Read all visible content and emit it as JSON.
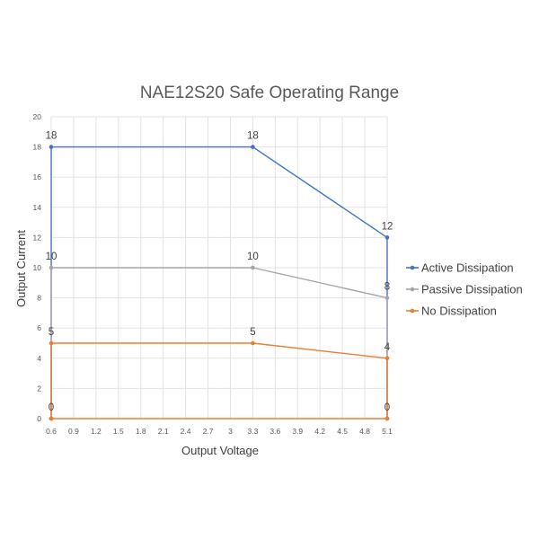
{
  "chart_data": {
    "type": "line",
    "title": "NAE12S20 Safe Operating Range",
    "xlabel": "Output Voltage",
    "ylabel": "Output Current",
    "x_ticks": [
      "0.6",
      "0.9",
      "1.2",
      "1.5",
      "1.8",
      "2.1",
      "2.4",
      "2.7",
      "3",
      "3.3",
      "3.6",
      "3.9",
      "4.2",
      "4.5",
      "4.8",
      "5.1"
    ],
    "y_ticks": [
      "0",
      "2",
      "4",
      "6",
      "8",
      "10",
      "12",
      "14",
      "16",
      "18",
      "20"
    ],
    "xlim": [
      0.6,
      5.1
    ],
    "ylim": [
      0,
      20
    ],
    "grid": true,
    "legend_position": "right",
    "series": [
      {
        "name": "Active Dissipation",
        "color": "#4472c4",
        "points": [
          [
            0.6,
            0
          ],
          [
            0.6,
            18
          ],
          [
            3.3,
            18
          ],
          [
            5.1,
            12
          ],
          [
            5.1,
            0
          ]
        ],
        "labels": [
          {
            "x": 0.6,
            "y": 18,
            "text": "18"
          },
          {
            "x": 3.3,
            "y": 18,
            "text": "18"
          },
          {
            "x": 5.1,
            "y": 12,
            "text": "12"
          }
        ]
      },
      {
        "name": "Passive Dissipation",
        "color": "#a5a5a5",
        "points": [
          [
            0.6,
            0
          ],
          [
            0.6,
            10
          ],
          [
            3.3,
            10
          ],
          [
            5.1,
            8
          ],
          [
            5.1,
            0
          ]
        ],
        "labels": [
          {
            "x": 0.6,
            "y": 10,
            "text": "10"
          },
          {
            "x": 3.3,
            "y": 10,
            "text": "10"
          },
          {
            "x": 5.1,
            "y": 8,
            "text": "8"
          }
        ]
      },
      {
        "name": "No Dissipation",
        "color": "#ed7d31",
        "points": [
          [
            0.6,
            0
          ],
          [
            0.6,
            5
          ],
          [
            3.3,
            5
          ],
          [
            5.1,
            4
          ],
          [
            5.1,
            0
          ],
          [
            0.6,
            0
          ]
        ],
        "labels": [
          {
            "x": 0.6,
            "y": 5,
            "text": "5"
          },
          {
            "x": 3.3,
            "y": 5,
            "text": "5"
          },
          {
            "x": 5.1,
            "y": 4,
            "text": "4"
          },
          {
            "x": 0.6,
            "y": 0,
            "text": "0"
          },
          {
            "x": 5.1,
            "y": 0,
            "text": "0"
          }
        ]
      }
    ]
  }
}
